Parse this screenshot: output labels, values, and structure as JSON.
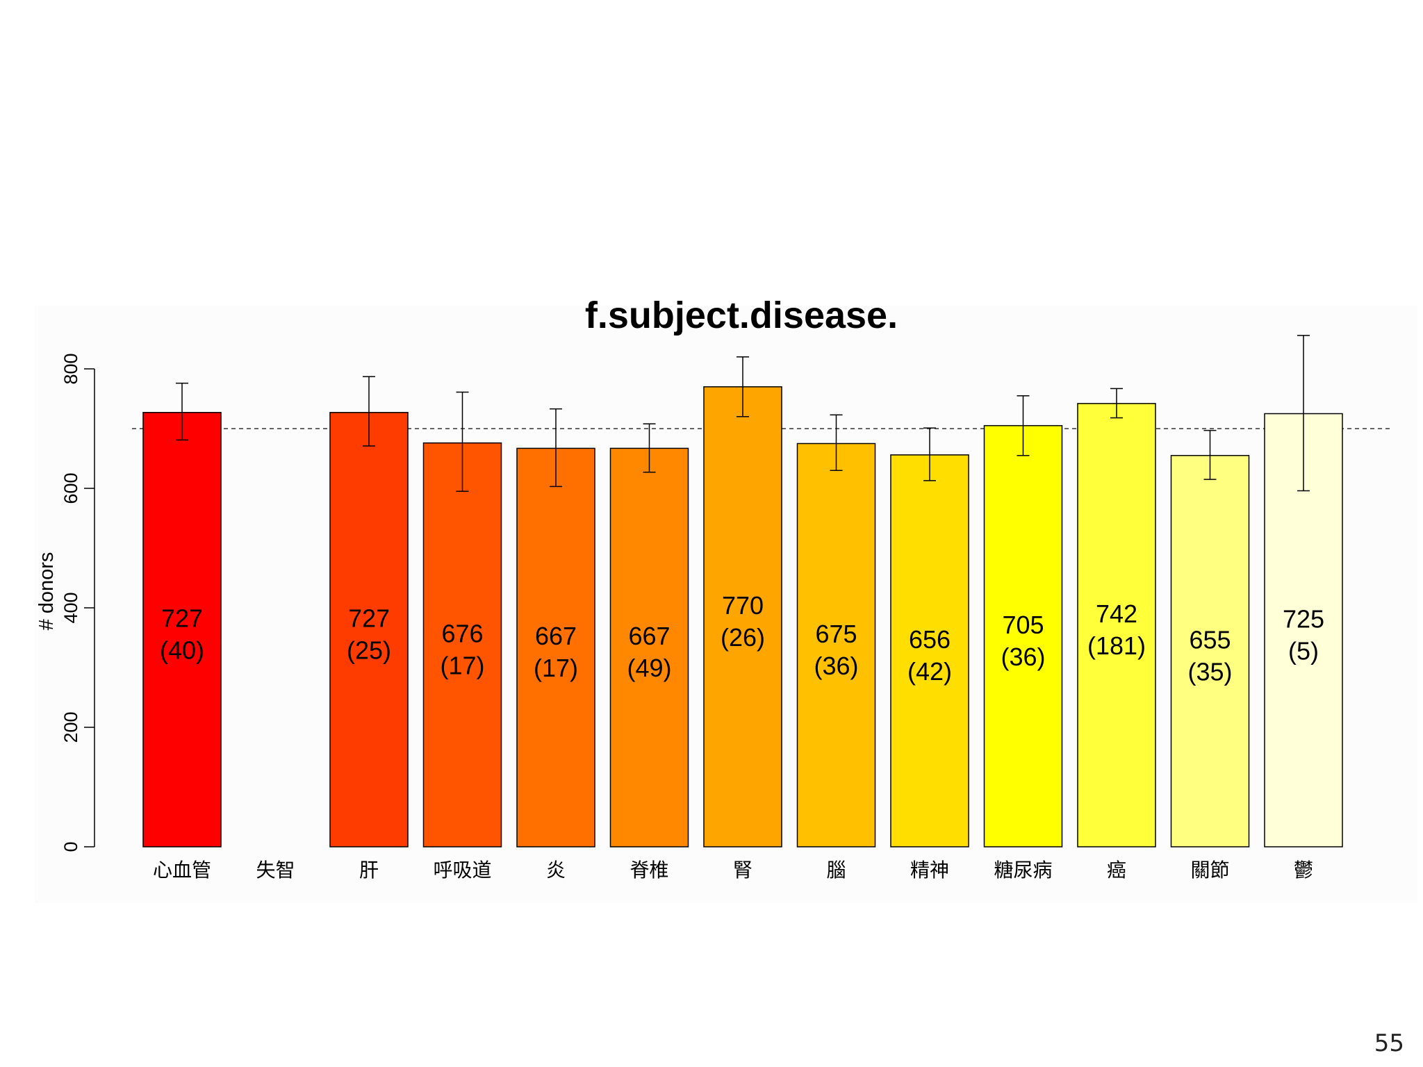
{
  "slide": {
    "page_number": "55"
  },
  "chart_data": {
    "type": "bar",
    "title": "f.subject.disease.",
    "xlabel": "",
    "ylabel": "# donors",
    "ylim": [
      0,
      800
    ],
    "yticks": [
      0,
      200,
      400,
      600,
      800
    ],
    "reference_line": 700,
    "categories": [
      "心血管",
      "失智",
      "肝",
      "呼吸道",
      "炎",
      "脊椎",
      "腎",
      "腦",
      "精神",
      "糖尿病",
      "癌",
      "關節",
      "鬱"
    ],
    "values": [
      727,
      null,
      727,
      676,
      667,
      667,
      770,
      675,
      656,
      705,
      742,
      655,
      725
    ],
    "counts": [
      40,
      null,
      25,
      17,
      17,
      49,
      26,
      36,
      42,
      36,
      181,
      35,
      5
    ],
    "value_labels": [
      "727",
      "",
      "727",
      "676",
      "667",
      "667",
      "770",
      "675",
      "656",
      "705",
      "742",
      "655",
      "725"
    ],
    "count_labels": [
      "(40)",
      "",
      "(25)",
      "(17)",
      "(17)",
      "(49)",
      "(26)",
      "(36)",
      "(42)",
      "(36)",
      "(181)",
      "(35)",
      "(5)"
    ],
    "error_low": [
      681,
      null,
      671,
      595,
      603,
      627,
      720,
      630,
      613,
      655,
      718,
      615,
      596
    ],
    "error_high": [
      776,
      null,
      787,
      761,
      733,
      708,
      820,
      723,
      701,
      755,
      767,
      697,
      856
    ],
    "colors": [
      "#ff0000",
      "#ff0000",
      "#ff3c00",
      "#ff5500",
      "#ff7000",
      "#ff8800",
      "#ffa500",
      "#ffc000",
      "#ffde00",
      "#ffff00",
      "#ffff3a",
      "#ffff80",
      "#ffffd8"
    ]
  }
}
